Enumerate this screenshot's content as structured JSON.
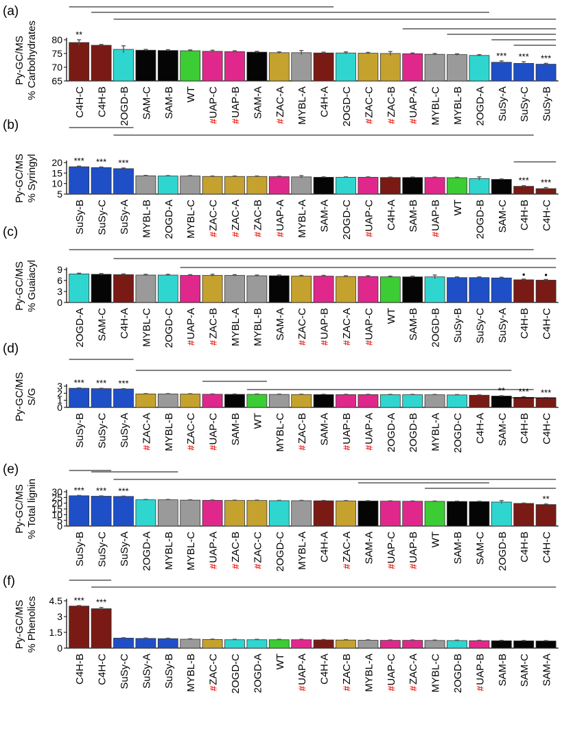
{
  "colors": {
    "maroon": "#7a1a14",
    "cyan": "#2fd6d0",
    "black": "#050505",
    "green": "#3ccc33",
    "magenta": "#e0288c",
    "gray": "#9a9a9a",
    "gold": "#c5a22e",
    "blue": "#1f4fc7",
    "hash": "#e8291f"
  },
  "chart_data": [
    {
      "panel": "(a)",
      "type": "bar",
      "ylabel": [
        "Py-GC/MS",
        "% Carbohydrates"
      ],
      "ylim": [
        65,
        80
      ],
      "yticks": [
        65,
        70,
        75,
        80
      ],
      "categories": [
        "C4H-C",
        "C4H-B",
        "2OGD-B",
        "SAM-C",
        "SAM-B",
        "WT",
        "UAP-C",
        "UAP-B",
        "SAM-A",
        "ZAC-A",
        "MYBL-A",
        "C4H-A",
        "2OGD-C",
        "ZAC-C",
        "ZAC-B",
        "UAP-A",
        "MYBL-C",
        "MYBL-B",
        "2OGD-A",
        "SuSy-A",
        "SuSy-C",
        "SuSy-B"
      ],
      "values": [
        79.0,
        78.0,
        76.5,
        76.2,
        76.1,
        76.0,
        75.8,
        75.7,
        75.5,
        75.3,
        75.3,
        75.2,
        75.2,
        75.1,
        75.0,
        74.9,
        74.7,
        74.6,
        74.3,
        71.8,
        71.4,
        71.1
      ],
      "errors": [
        1.0,
        0.3,
        1.3,
        0.3,
        0.3,
        0.3,
        0.4,
        0.3,
        0.3,
        0.3,
        0.8,
        0.3,
        0.4,
        0.3,
        0.7,
        0.3,
        0.3,
        0.3,
        0.3,
        0.5,
        0.6,
        0.3
      ],
      "colors": [
        "maroon",
        "maroon",
        "cyan",
        "black",
        "black",
        "green",
        "magenta",
        "magenta",
        "black",
        "gold",
        "gray",
        "maroon",
        "cyan",
        "gold",
        "gold",
        "magenta",
        "gray",
        "gray",
        "cyan",
        "blue",
        "blue",
        "blue"
      ],
      "hash": [
        false,
        false,
        false,
        false,
        false,
        false,
        true,
        true,
        false,
        true,
        false,
        false,
        false,
        true,
        true,
        true,
        false,
        false,
        false,
        false,
        false,
        false
      ],
      "sig": [
        "**",
        "",
        "",
        "",
        "",
        "",
        "",
        "",
        "",
        "",
        "",
        "",
        "",
        "",
        "",
        "",
        "",
        "",
        "",
        "***",
        "***",
        "***"
      ],
      "brackets": [
        [
          0,
          11
        ],
        [
          1,
          18
        ],
        [
          2,
          21
        ],
        [
          15,
          21
        ],
        [
          17,
          21
        ],
        [
          19,
          21
        ],
        [
          20,
          21
        ]
      ]
    },
    {
      "panel": "(b)",
      "type": "bar",
      "ylabel": [
        "Py-GC/MS",
        "% Syringyl"
      ],
      "ylim": [
        5,
        20
      ],
      "yticks": [
        5,
        10,
        15,
        20
      ],
      "categories": [
        "SuSy-B",
        "SuSy-C",
        "SuSy-A",
        "MYBL-B",
        "2OGD-A",
        "MYBL-C",
        "ZAC-C",
        "ZAC-A",
        "ZAC-B",
        "UAP-A",
        "MYBL-A",
        "SAM-A",
        "2OGD-C",
        "UAP-C",
        "C4H-A",
        "SAM-B",
        "UAP-B",
        "WT",
        "2OGD-B",
        "SAM-C",
        "C4H-B",
        "C4H-C"
      ],
      "values": [
        18.0,
        17.6,
        17.1,
        13.7,
        13.6,
        13.6,
        13.4,
        13.4,
        13.4,
        13.3,
        13.2,
        13.0,
        13.0,
        13.0,
        12.9,
        12.9,
        12.9,
        12.8,
        12.4,
        12.0,
        8.7,
        7.6
      ],
      "errors": [
        0.3,
        0.3,
        0.3,
        0.2,
        0.2,
        0.2,
        0.2,
        0.2,
        0.2,
        0.2,
        0.6,
        0.2,
        0.2,
        0.2,
        0.2,
        0.2,
        0.2,
        0.2,
        0.8,
        0.2,
        0.3,
        0.5
      ],
      "colors": [
        "blue",
        "blue",
        "blue",
        "gray",
        "cyan",
        "gray",
        "gold",
        "gold",
        "gold",
        "magenta",
        "gray",
        "black",
        "cyan",
        "magenta",
        "maroon",
        "black",
        "magenta",
        "green",
        "cyan",
        "black",
        "maroon",
        "maroon"
      ],
      "hash": [
        false,
        false,
        false,
        false,
        false,
        false,
        true,
        true,
        true,
        true,
        false,
        false,
        false,
        true,
        false,
        false,
        true,
        false,
        false,
        false,
        false,
        false
      ],
      "sig": [
        "***",
        "***",
        "***",
        "",
        "",
        "",
        "",
        "",
        "",
        "",
        "",
        "",
        "",
        "",
        "",
        "",
        "",
        "",
        "",
        "",
        "***",
        "***"
      ],
      "brackets": [
        [
          0,
          2
        ],
        [
          2,
          20
        ],
        [
          20,
          21
        ]
      ]
    },
    {
      "panel": "(c)",
      "type": "bar",
      "ylabel": [
        "Py-GC/MS",
        "% Guaiacyl"
      ],
      "ylim": [
        0,
        9
      ],
      "yticks": [
        0,
        3,
        6,
        9
      ],
      "categories": [
        "2OGD-A",
        "SAM-C",
        "C4H-A",
        "MYBL-C",
        "2OGD-C",
        "UAP-A",
        "ZAC-B",
        "MYBL-A",
        "MYBL-B",
        "SAM-A",
        "ZAC-C",
        "UAP-B",
        "ZAC-A",
        "UAP-C",
        "WT",
        "SAM-B",
        "2OGD-B",
        "SuSy-B",
        "SuSy-C",
        "SuSy-A",
        "C4H-B",
        "C4H-C"
      ],
      "values": [
        7.8,
        7.7,
        7.6,
        7.5,
        7.5,
        7.4,
        7.4,
        7.4,
        7.3,
        7.3,
        7.2,
        7.2,
        7.1,
        7.1,
        7.0,
        7.0,
        7.0,
        6.8,
        6.8,
        6.7,
        6.2,
        6.1
      ],
      "errors": [
        0.2,
        0.2,
        0.2,
        0.2,
        0.2,
        0.2,
        0.3,
        0.2,
        0.2,
        0.2,
        0.2,
        0.2,
        0.2,
        0.2,
        0.2,
        0.2,
        0.5,
        0.2,
        0.2,
        0.2,
        0.2,
        0.2
      ],
      "colors": [
        "cyan",
        "black",
        "maroon",
        "gray",
        "cyan",
        "magenta",
        "gold",
        "gray",
        "gray",
        "black",
        "gold",
        "magenta",
        "gold",
        "magenta",
        "green",
        "black",
        "cyan",
        "blue",
        "blue",
        "blue",
        "maroon",
        "maroon"
      ],
      "hash": [
        false,
        false,
        false,
        false,
        false,
        true,
        true,
        false,
        false,
        false,
        true,
        true,
        true,
        true,
        false,
        false,
        false,
        false,
        false,
        false,
        false,
        false
      ],
      "sig": [
        "",
        "",
        "",
        "",
        "",
        "",
        "",
        "",
        "",
        "",
        "",
        "",
        "",
        "",
        "",
        "",
        "",
        "",
        "",
        "",
        "•",
        "•"
      ],
      "brackets": [
        [
          0,
          20
        ],
        [
          2,
          21
        ],
        [
          5,
          21
        ]
      ]
    },
    {
      "panel": "(d)",
      "type": "bar",
      "ylabel": [
        "Py-GC/MS",
        "S/G"
      ],
      "ylim": [
        0,
        3
      ],
      "yticks": [
        0,
        1,
        2,
        3
      ],
      "categories": [
        "SuSy-B",
        "SuSy-C",
        "SuSy-A",
        "ZAC-A",
        "MYBL-B",
        "ZAC-C",
        "UAP-C",
        "SAM-B",
        "WT",
        "MYBL-C",
        "ZAC-B",
        "SAM-A",
        "UAP-B",
        "UAP-A",
        "2OGD-A",
        "2OGD-B",
        "MYBL-A",
        "2OGD-C",
        "C4H-A",
        "SAM-C",
        "C4H-B",
        "C4H-C"
      ],
      "values": [
        2.7,
        2.65,
        2.6,
        1.9,
        1.9,
        1.88,
        1.85,
        1.84,
        1.84,
        1.83,
        1.82,
        1.81,
        1.8,
        1.8,
        1.79,
        1.79,
        1.78,
        1.76,
        1.72,
        1.6,
        1.42,
        1.3
      ],
      "errors": [
        0.05,
        0.05,
        0.05,
        0.05,
        0.05,
        0.05,
        0.05,
        0.05,
        0.05,
        0.05,
        0.05,
        0.05,
        0.05,
        0.05,
        0.05,
        0.05,
        0.05,
        0.05,
        0.05,
        0.05,
        0.08,
        0.06
      ],
      "colors": [
        "blue",
        "blue",
        "blue",
        "gold",
        "gray",
        "gold",
        "magenta",
        "black",
        "green",
        "gray",
        "gold",
        "black",
        "magenta",
        "magenta",
        "cyan",
        "cyan",
        "gray",
        "cyan",
        "maroon",
        "black",
        "maroon",
        "maroon"
      ],
      "hash": [
        false,
        false,
        false,
        true,
        false,
        true,
        true,
        false,
        false,
        false,
        true,
        false,
        true,
        true,
        false,
        false,
        false,
        false,
        false,
        false,
        false,
        false
      ],
      "sig": [
        "***",
        "***",
        "***",
        "",
        "",
        "",
        "",
        "",
        "",
        "",
        "",
        "",
        "",
        "",
        "",
        "",
        "",
        "",
        "",
        "**",
        "***",
        "***"
      ],
      "brackets": [
        [
          0,
          2
        ],
        [
          3,
          19
        ],
        [
          6,
          8
        ],
        [
          8,
          20
        ],
        [
          19,
          21
        ]
      ]
    },
    {
      "panel": "(e)",
      "type": "bar",
      "ylabel": [
        "Py-GC/MS",
        "% Total lignin"
      ],
      "ylim": [
        0,
        30
      ],
      "yticks": [
        0,
        5,
        10,
        15,
        20,
        25,
        30
      ],
      "categories": [
        "SuSy-B",
        "SuSy-C",
        "SuSy-A",
        "2OGD-A",
        "MYBL-B",
        "MYBL-C",
        "UAP-A",
        "ZAC-B",
        "ZAC-C",
        "2OGD-C",
        "MYBL-A",
        "C4H-A",
        "ZAC-A",
        "SAM-A",
        "UAP-C",
        "UAP-B",
        "WT",
        "SAM-B",
        "SAM-C",
        "2OGD-B",
        "C4H-B",
        "C4H-C"
      ],
      "values": [
        26.5,
        26.1,
        25.9,
        23.0,
        23.0,
        22.7,
        22.5,
        22.4,
        22.4,
        22.2,
        22.2,
        22.1,
        22.0,
        21.9,
        21.8,
        21.7,
        21.6,
        21.5,
        21.4,
        21.0,
        19.8,
        18.8
      ],
      "errors": [
        0.3,
        0.3,
        0.3,
        0.3,
        0.3,
        0.3,
        0.3,
        0.3,
        0.3,
        0.3,
        0.3,
        0.3,
        0.3,
        0.3,
        0.3,
        0.3,
        0.3,
        0.3,
        0.3,
        1.3,
        0.3,
        0.5
      ],
      "colors": [
        "blue",
        "blue",
        "blue",
        "cyan",
        "gray",
        "gray",
        "magenta",
        "gold",
        "gold",
        "cyan",
        "gray",
        "maroon",
        "gold",
        "black",
        "magenta",
        "magenta",
        "green",
        "black",
        "black",
        "cyan",
        "maroon",
        "maroon"
      ],
      "hash": [
        false,
        false,
        false,
        false,
        false,
        false,
        true,
        true,
        true,
        false,
        false,
        false,
        true,
        false,
        true,
        true,
        false,
        false,
        false,
        false,
        false,
        false
      ],
      "sig": [
        "***",
        "***",
        "***",
        "",
        "",
        "",
        "",
        "",
        "",
        "",
        "",
        "",
        "",
        "",
        "",
        "",
        "",
        "",
        "",
        "",
        "",
        "**"
      ],
      "brackets": [
        [
          0,
          1
        ],
        [
          1,
          4
        ],
        [
          2,
          21
        ],
        [
          13,
          18
        ],
        [
          16,
          21
        ]
      ]
    },
    {
      "panel": "(f)",
      "type": "bar",
      "ylabel": [
        "Py-GC/MS",
        "% Phenolics"
      ],
      "ylim": [
        0,
        4.5
      ],
      "yticks": [
        0,
        1.5,
        3,
        4.5
      ],
      "categories": [
        "C4H-B",
        "C4H-C",
        "SuSy-C",
        "SuSy-A",
        "SuSy-B",
        "MYBL-B",
        "ZAC-C",
        "2OGD-C",
        "2OGD-A",
        "WT",
        "UAP-A",
        "C4H-A",
        "ZAC-B",
        "MYBL-A",
        "UAP-C",
        "ZAC-A",
        "MYBL-C",
        "2OGD-B",
        "UAP-B",
        "SAM-B",
        "SAM-C",
        "SAM-A"
      ],
      "values": [
        4.0,
        3.75,
        0.95,
        0.92,
        0.9,
        0.85,
        0.82,
        0.8,
        0.8,
        0.8,
        0.8,
        0.78,
        0.77,
        0.75,
        0.74,
        0.74,
        0.73,
        0.72,
        0.71,
        0.7,
        0.69,
        0.68
      ],
      "errors": [
        0.05,
        0.12,
        0.04,
        0.04,
        0.04,
        0.04,
        0.04,
        0.04,
        0.04,
        0.04,
        0.04,
        0.04,
        0.04,
        0.04,
        0.04,
        0.04,
        0.04,
        0.04,
        0.04,
        0.04,
        0.04,
        0.04
      ],
      "colors": [
        "maroon",
        "maroon",
        "blue",
        "blue",
        "blue",
        "gray",
        "gold",
        "cyan",
        "cyan",
        "green",
        "magenta",
        "maroon",
        "gold",
        "gray",
        "magenta",
        "magenta",
        "gray",
        "cyan",
        "magenta",
        "black",
        "black",
        "black"
      ],
      "hash": [
        false,
        false,
        false,
        false,
        false,
        false,
        true,
        false,
        false,
        false,
        true,
        false,
        true,
        false,
        true,
        true,
        false,
        false,
        true,
        false,
        false,
        false
      ],
      "sig": [
        "***",
        "***",
        "",
        "",
        "",
        "",
        "",
        "",
        "",
        "",
        "",
        "",
        "",
        "",
        "",
        "",
        "",
        "",
        "",
        "",
        "",
        ""
      ],
      "brackets": [
        [
          0,
          1
        ],
        [
          1,
          21
        ]
      ]
    }
  ]
}
